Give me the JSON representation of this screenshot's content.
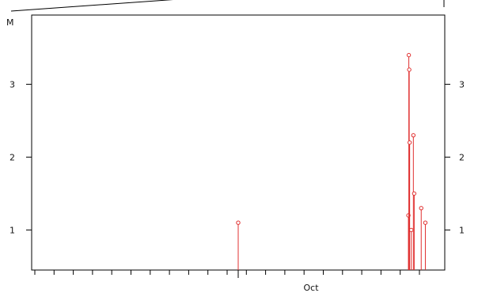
{
  "chart_data": {
    "type": "scatter",
    "style": "needle-lollipop",
    "unit_label": "M",
    "x_tick_label": "Oct",
    "y_ticks": [
      1,
      2,
      3
    ],
    "ylim": [
      0.45,
      3.95
    ],
    "grid": false,
    "legend": "none",
    "colors": {
      "series": "#e03030",
      "axis": "#000000"
    },
    "series": [
      {
        "points": [
          {
            "x": 0.5,
            "y": 1.1
          },
          {
            "x": 0.912,
            "y": 1.2
          },
          {
            "x": 0.913,
            "y": 3.4
          },
          {
            "x": 0.914,
            "y": 3.2
          },
          {
            "x": 0.915,
            "y": 2.2
          },
          {
            "x": 0.919,
            "y": 1.0
          },
          {
            "x": 0.924,
            "y": 2.3
          },
          {
            "x": 0.926,
            "y": 1.5
          },
          {
            "x": 0.943,
            "y": 1.3
          },
          {
            "x": 0.953,
            "y": 1.1
          }
        ]
      }
    ]
  }
}
